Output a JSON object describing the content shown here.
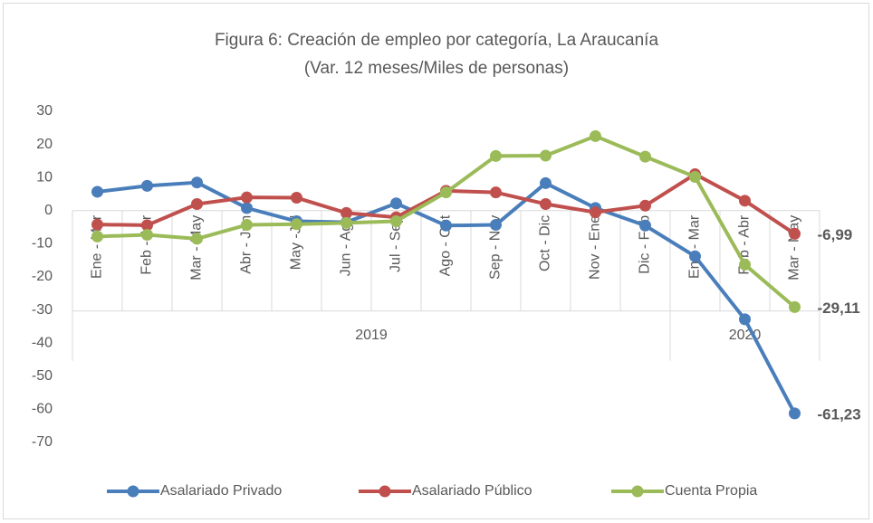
{
  "chart_data": {
    "type": "line",
    "title": "Figura 6: Creación de empleo por categoría, La Araucanía",
    "subtitle": "(Var. 12 meses/Miles de personas)",
    "categories": [
      "Ene - Mar",
      "Feb - Abr",
      "Mar - May",
      "Abr - Jun",
      "May -Jul",
      "Jun - Ago",
      "Jul - Sep",
      "Ago - Oct",
      "Sep - Nov",
      "Oct - Dic",
      "Nov - Ene",
      "Dic - Feb",
      "Ene - Mar",
      "Feb - Abr",
      "Mar - May"
    ],
    "groups": [
      {
        "label": "2019",
        "span": 12
      },
      {
        "label": "2020",
        "span": 3
      }
    ],
    "series": [
      {
        "name": "Asalariado Privado",
        "color": "#4a7ebb",
        "values": [
          5.7,
          7.5,
          8.5,
          0.8,
          -3.2,
          -3.5,
          2.2,
          -4.5,
          -4.3,
          8.3,
          0.8,
          -4.5,
          -13.8,
          -32.8,
          -61.23
        ],
        "value_labels": [
          null,
          null,
          null,
          null,
          null,
          null,
          null,
          null,
          null,
          null,
          null,
          null,
          null,
          null,
          "-61,23"
        ],
        "label_color": "#1f6fb5"
      },
      {
        "name": "Asalariado Público",
        "color": "#c0504d",
        "values": [
          -4.2,
          -4.4,
          2,
          4,
          3.9,
          -0.7,
          -2,
          6,
          5.5,
          2,
          -0.5,
          1.5,
          11,
          3,
          -6.99
        ],
        "value_labels": [
          null,
          null,
          null,
          null,
          null,
          null,
          null,
          null,
          null,
          null,
          null,
          null,
          null,
          null,
          "-6,99"
        ],
        "label_color": "#c00000"
      },
      {
        "name": "Cuenta Propia",
        "color": "#9bbb59",
        "values": [
          -7.8,
          -7.3,
          -8.5,
          -4.3,
          -4.1,
          -3.7,
          -3.2,
          5.5,
          16.5,
          16.6,
          22.5,
          16.3,
          10.2,
          -16.3,
          -29.11
        ],
        "value_labels": [
          null,
          null,
          null,
          null,
          null,
          null,
          null,
          null,
          null,
          null,
          null,
          null,
          null,
          null,
          "-29,11"
        ],
        "label_color": "#76923c"
      }
    ],
    "ylim": [
      -70,
      30
    ],
    "yticks": [
      -70,
      -60,
      -50,
      -40,
      -30,
      -20,
      -10,
      0,
      10,
      20,
      30
    ],
    "grid": false,
    "legend": "bottom"
  }
}
